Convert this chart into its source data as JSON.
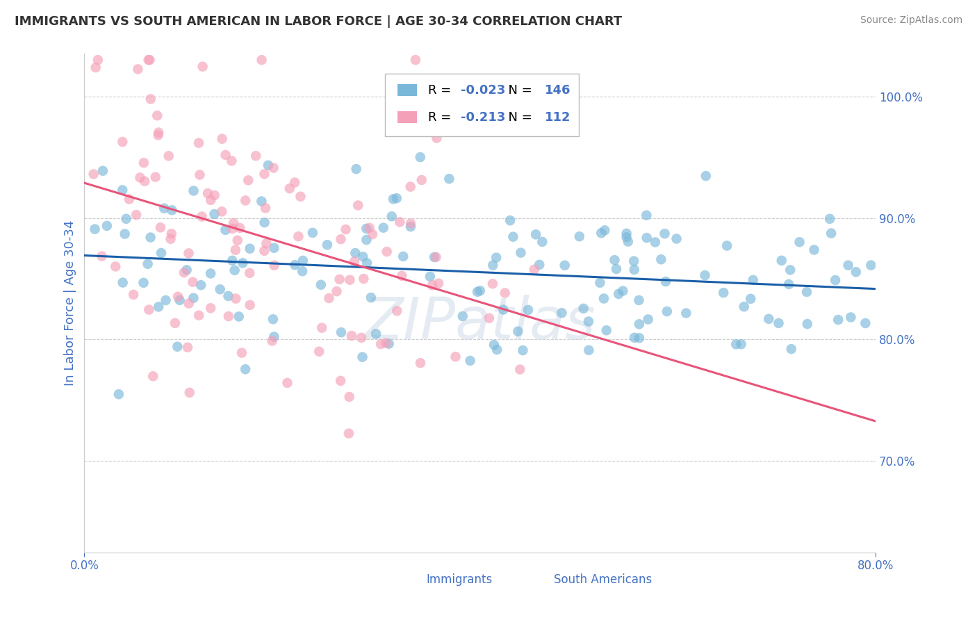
{
  "title": "IMMIGRANTS VS SOUTH AMERICAN IN LABOR FORCE | AGE 30-34 CORRELATION CHART",
  "source": "Source: ZipAtlas.com",
  "ylabel": "In Labor Force | Age 30-34",
  "xmin": 0.0,
  "xmax": 0.8,
  "ymin": 0.625,
  "ymax": 1.035,
  "yticks": [
    0.7,
    0.8,
    0.9,
    1.0
  ],
  "ytick_labels": [
    "70.0%",
    "80.0%",
    "90.0%",
    "100.0%"
  ],
  "blue_color": "#7ab8d9",
  "pink_color": "#f4a0b8",
  "blue_line_color": "#1a5fa8",
  "pink_line_color": "#e8547a",
  "R_blue": -0.023,
  "N_blue": 146,
  "R_pink": -0.213,
  "N_pink": 112,
  "legend_label_blue": "Immigrants",
  "legend_label_pink": "South Americans",
  "watermark": "ZIPatlas",
  "background_color": "#ffffff",
  "grid_color": "#cccccc",
  "title_color": "#333333",
  "source_color": "#888888",
  "tick_color": "#4472c4",
  "legend_R_color": "#4472c4",
  "blue_scatter_seed": 101,
  "pink_scatter_seed": 202
}
